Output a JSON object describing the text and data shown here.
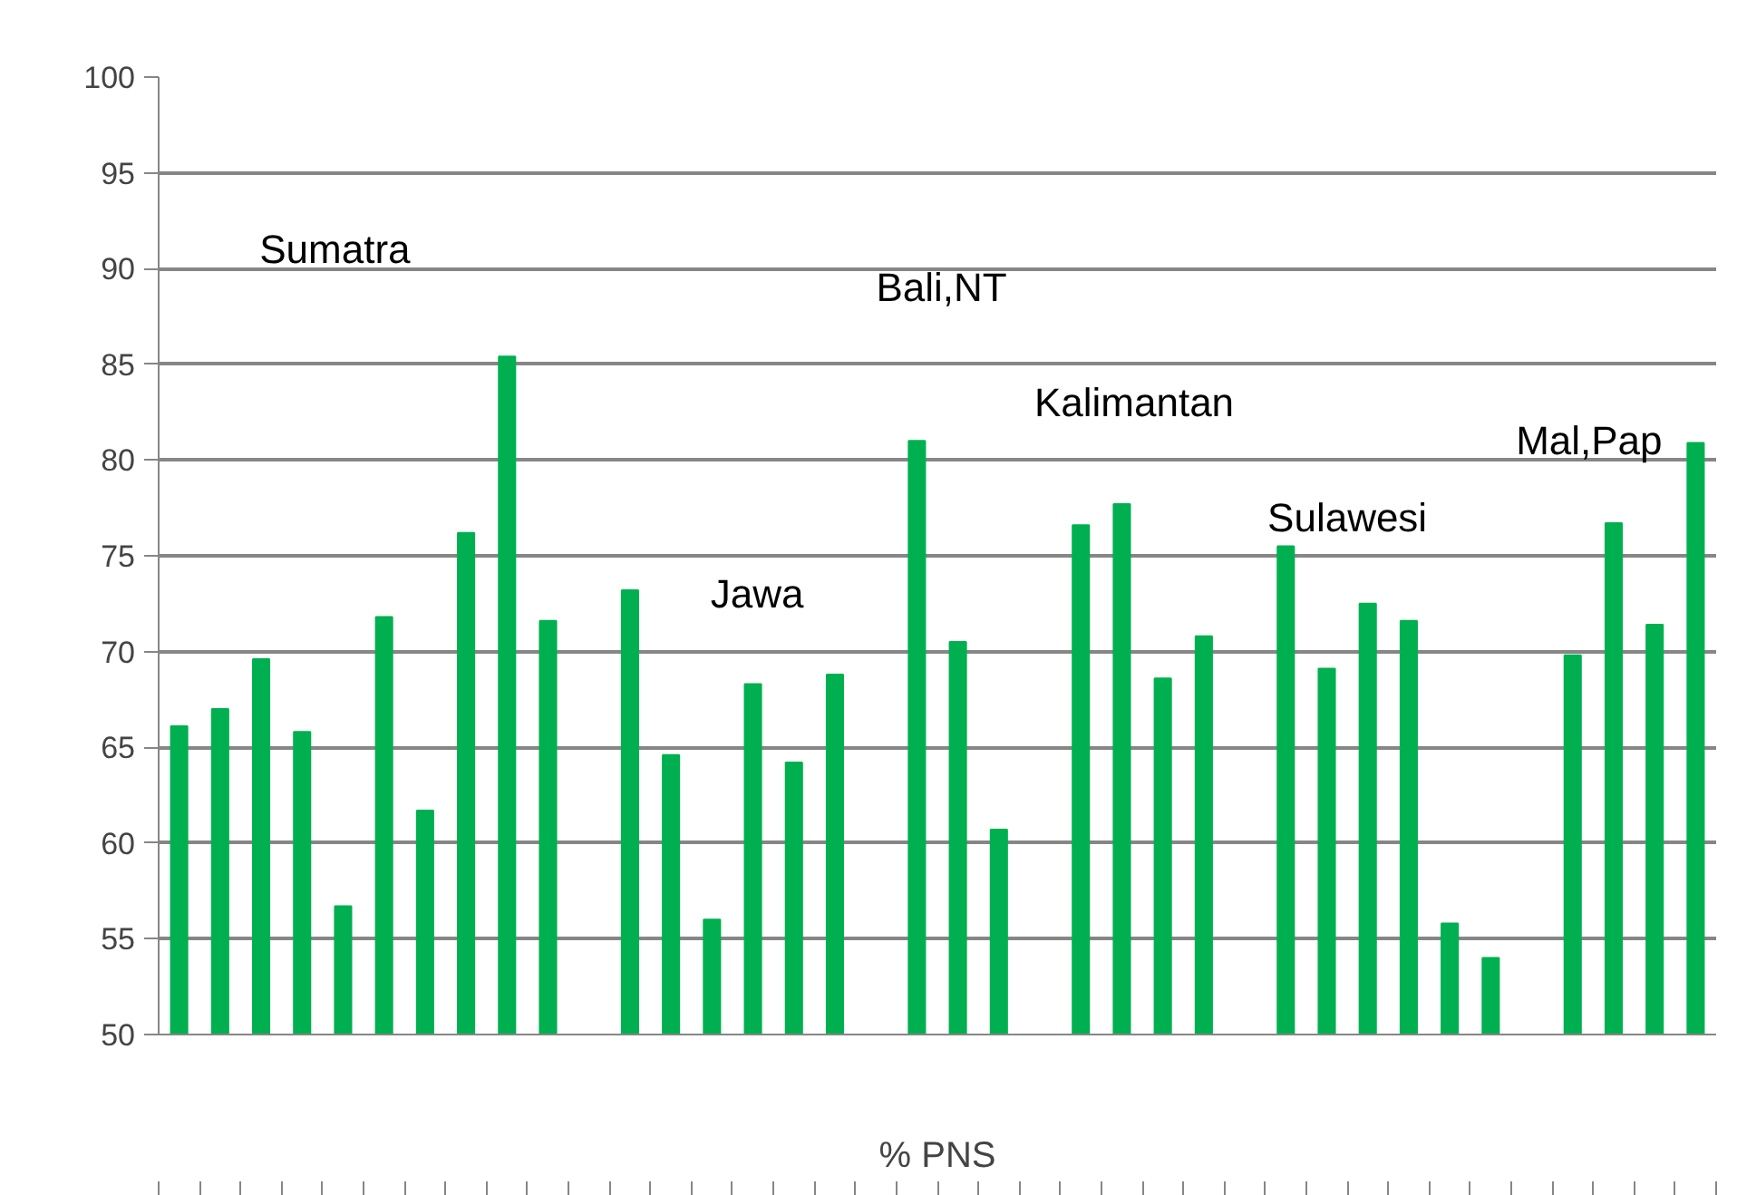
{
  "chart_data": {
    "type": "bar",
    "xlabel": "% PNS",
    "categories": [
      null,
      null,
      null,
      null,
      null,
      null,
      null,
      null,
      null,
      null,
      null,
      null,
      null,
      null,
      null,
      null,
      null,
      null,
      null,
      null,
      null,
      null,
      null,
      null,
      null,
      null,
      null,
      null,
      null,
      null,
      null,
      null,
      null,
      null,
      null,
      null,
      null,
      null
    ],
    "values": [
      66.1,
      67.0,
      69.6,
      65.8,
      56.7,
      71.8,
      61.7,
      76.2,
      85.4,
      71.6,
      null,
      73.2,
      64.6,
      56.0,
      68.3,
      64.2,
      68.8,
      null,
      81.0,
      70.5,
      60.7,
      null,
      76.6,
      77.7,
      68.6,
      70.8,
      null,
      75.5,
      69.1,
      72.5,
      71.6,
      55.8,
      54.0,
      null,
      69.8,
      76.7,
      71.4,
      80.9
    ],
    "color": "#00b050",
    "ylim": [
      50,
      100
    ],
    "yticks": [
      50,
      55,
      60,
      65,
      70,
      75,
      80,
      85,
      90,
      95,
      100
    ],
    "grid": "y",
    "annotations": [
      "Sumatra",
      "Jawa",
      "Bali,NT",
      "Kalimantan",
      "Sulawesi",
      "Mal,Pap"
    ]
  }
}
